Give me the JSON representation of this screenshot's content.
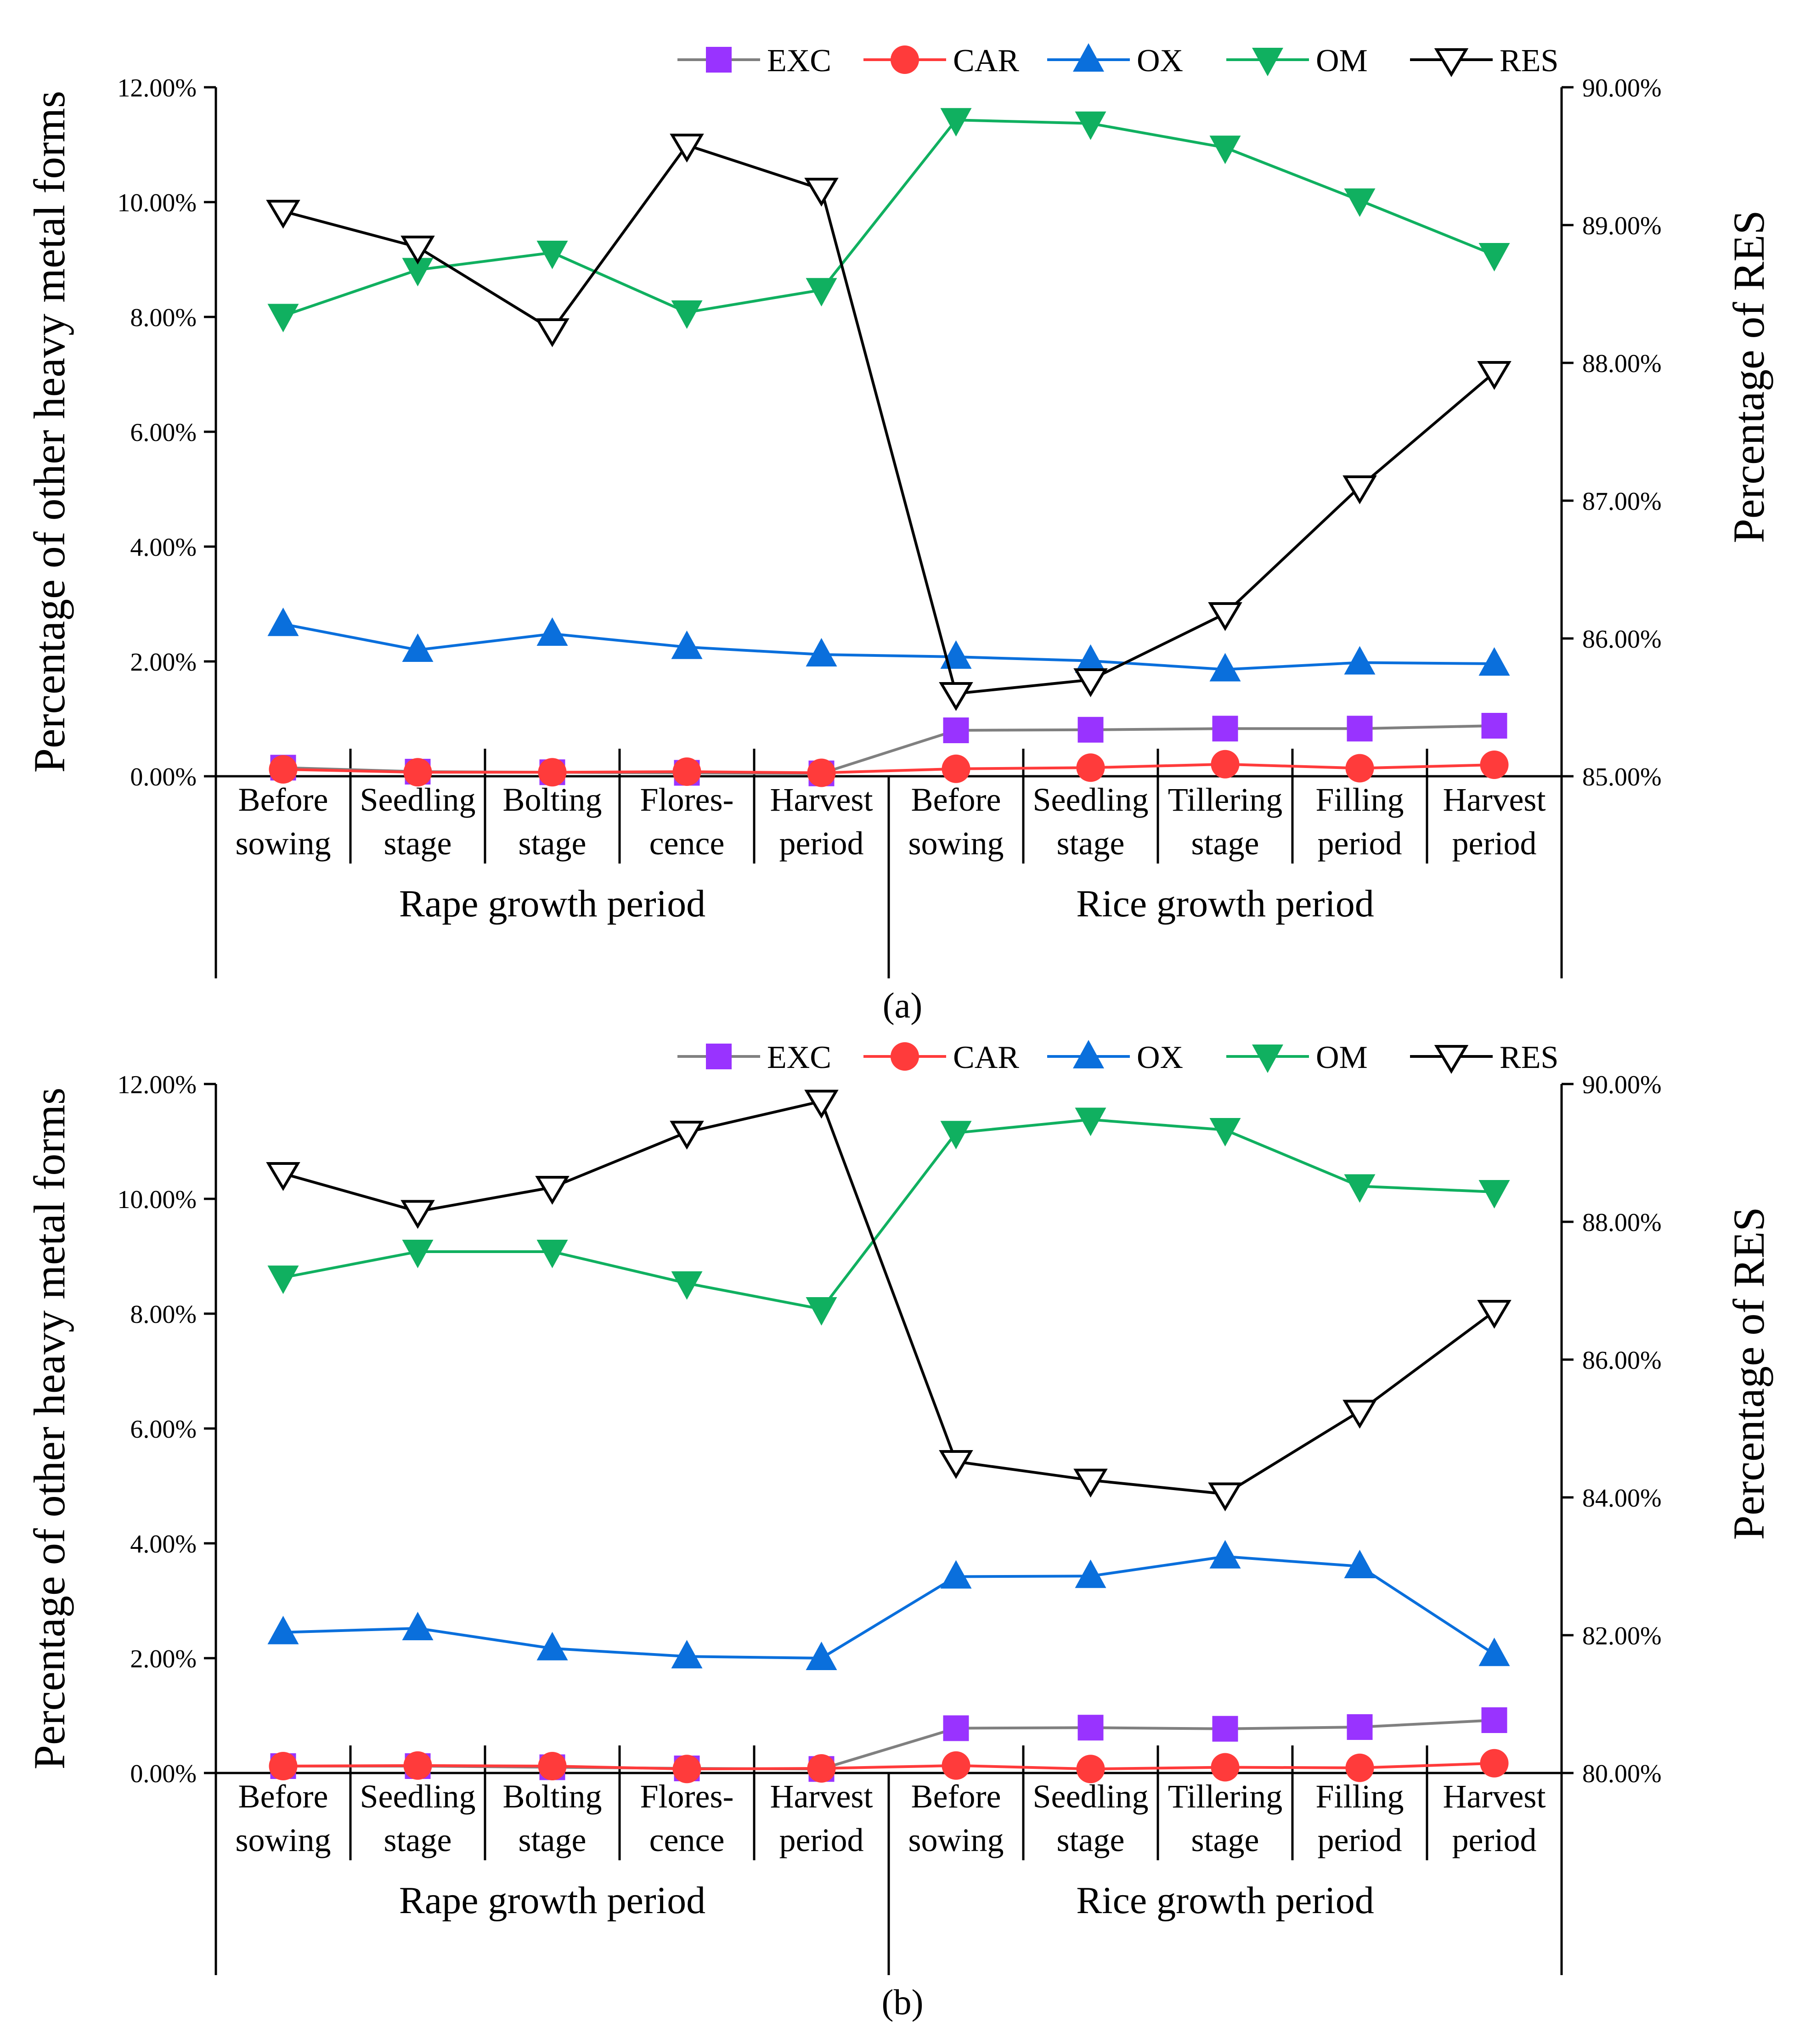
{
  "legend": [
    {
      "key": "EXC",
      "label": "EXC",
      "color": "#9933ff",
      "line": "#808080",
      "marker": "square"
    },
    {
      "key": "CAR",
      "label": "CAR",
      "color": "#ff3b3b",
      "line": "#ff3b3b",
      "marker": "circle"
    },
    {
      "key": "OX",
      "label": "OX",
      "color": "#0a6fdc",
      "line": "#0a6fdc",
      "marker": "triangle-up"
    },
    {
      "key": "OM",
      "label": "OM",
      "color": "#10b060",
      "line": "#10b060",
      "marker": "triangle-down"
    },
    {
      "key": "RES",
      "label": "RES",
      "color": "#ffffff",
      "line": "#000000",
      "marker": "triangle-down-open"
    }
  ],
  "chart_data": [
    {
      "panel": "a",
      "type": "line",
      "categories": [
        [
          "Before",
          "sowing"
        ],
        [
          "Seedling",
          "stage"
        ],
        [
          "Bolting",
          "stage"
        ],
        [
          "Flores-",
          "cence"
        ],
        [
          "Harvest",
          "period"
        ],
        [
          "Before",
          "sowing"
        ],
        [
          "Seedling",
          "stage"
        ],
        [
          "Tillering",
          "stage"
        ],
        [
          "Filling",
          "period"
        ],
        [
          "Harvest",
          "period"
        ]
      ],
      "groups": [
        "Rape growth period",
        "Rice growth period"
      ],
      "ylabel": "Percentage of other heavy metal forms",
      "y2label": "Percentage of RES",
      "yticks": [
        "0.00%",
        "2.00%",
        "4.00%",
        "6.00%",
        "8.00%",
        "10.00%",
        "12.00%"
      ],
      "y2ticks": [
        "85.00%",
        "86.00%",
        "87.00%",
        "88.00%",
        "89.00%",
        "90.00%"
      ],
      "ylim": [
        0,
        12
      ],
      "y2lim": [
        85,
        90
      ],
      "series": [
        {
          "name": "EXC",
          "axis": "left",
          "values": [
            0.15,
            0.08,
            0.07,
            0.06,
            0.05,
            0.8,
            0.81,
            0.83,
            0.83,
            0.88
          ]
        },
        {
          "name": "CAR",
          "axis": "left",
          "values": [
            0.12,
            0.07,
            0.07,
            0.08,
            0.06,
            0.13,
            0.15,
            0.21,
            0.14,
            0.2
          ]
        },
        {
          "name": "OX",
          "axis": "left",
          "values": [
            2.65,
            2.2,
            2.48,
            2.25,
            2.12,
            2.08,
            2.01,
            1.86,
            1.98,
            1.96
          ]
        },
        {
          "name": "OM",
          "axis": "left",
          "values": [
            8.02,
            8.82,
            9.12,
            8.08,
            8.47,
            11.43,
            11.37,
            10.95,
            10.03,
            9.08
          ]
        },
        {
          "name": "RES",
          "axis": "right",
          "values": [
            89.1,
            88.84,
            88.24,
            89.58,
            89.26,
            85.6,
            85.7,
            86.18,
            87.1,
            87.93
          ]
        }
      ]
    },
    {
      "panel": "b",
      "type": "line",
      "categories": [
        [
          "Before",
          "sowing"
        ],
        [
          "Seedling",
          "stage"
        ],
        [
          "Bolting",
          "stage"
        ],
        [
          "Flores-",
          "cence"
        ],
        [
          "Harvest",
          "period"
        ],
        [
          "Before",
          "sowing"
        ],
        [
          "Seedling",
          "stage"
        ],
        [
          "Tillering",
          "stage"
        ],
        [
          "Filling",
          "period"
        ],
        [
          "Harvest",
          "period"
        ]
      ],
      "groups": [
        "Rape growth period",
        "Rice growth period"
      ],
      "ylabel": "Percentage of other heavy metal forms",
      "y2label": "Percentage of RES",
      "yticks": [
        "0.00%",
        "2.00%",
        "4.00%",
        "6.00%",
        "8.00%",
        "10.00%",
        "12.00%"
      ],
      "y2ticks": [
        "80.00%",
        "82.00%",
        "84.00%",
        "86.00%",
        "88.00%",
        "90.00%"
      ],
      "ylim": [
        0,
        12
      ],
      "y2lim": [
        80,
        90
      ],
      "series": [
        {
          "name": "EXC",
          "axis": "left",
          "values": [
            0.12,
            0.12,
            0.1,
            0.08,
            0.07,
            0.78,
            0.79,
            0.77,
            0.8,
            0.92
          ]
        },
        {
          "name": "CAR",
          "axis": "left",
          "values": [
            0.12,
            0.13,
            0.12,
            0.07,
            0.08,
            0.13,
            0.07,
            0.1,
            0.09,
            0.17
          ]
        },
        {
          "name": "OX",
          "axis": "left",
          "values": [
            2.45,
            2.52,
            2.17,
            2.03,
            2.0,
            3.42,
            3.43,
            3.77,
            3.6,
            2.07
          ]
        },
        {
          "name": "OM",
          "axis": "left",
          "values": [
            8.63,
            9.08,
            9.08,
            8.53,
            8.08,
            11.15,
            11.38,
            11.2,
            10.22,
            10.12
          ]
        },
        {
          "name": "RES",
          "axis": "right",
          "values": [
            88.7,
            88.15,
            88.5,
            89.3,
            89.75,
            84.52,
            84.25,
            84.05,
            85.25,
            86.7
          ]
        }
      ]
    }
  ],
  "panel_labels": [
    "(a)",
    "(b)"
  ]
}
